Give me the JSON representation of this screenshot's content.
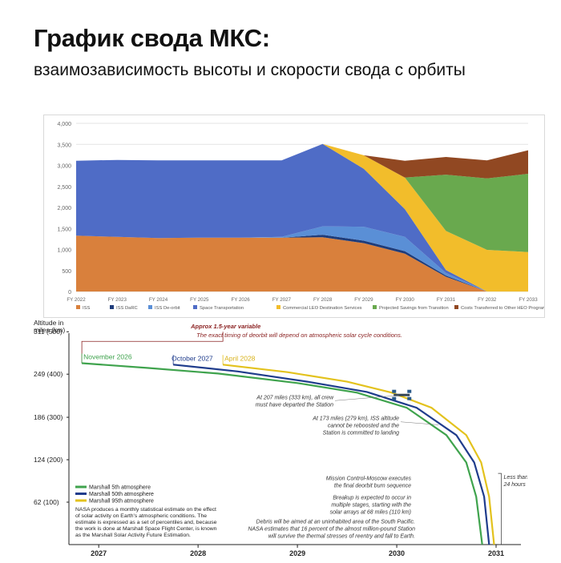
{
  "header": {
    "title": "График свода МКС:",
    "subtitle": "взаимозависимость высоты и скорости свода с орбиты"
  },
  "chart_data": [
    {
      "type": "area",
      "stacked": true,
      "categories": [
        "FY 2022",
        "FY 2023",
        "FY 2024",
        "FY 2025",
        "FY 2026",
        "FY 2027",
        "FY 2028",
        "FY 2029",
        "FY 2030",
        "FY 2031",
        "FY 2032",
        "FY 2033"
      ],
      "ylim": [
        0,
        4000
      ],
      "yticks": [
        "0",
        "500",
        "1,000",
        "1,500",
        "2,000",
        "2,500",
        "3,000",
        "3,500",
        "4,000"
      ],
      "yticks_values": [
        0,
        500,
        1000,
        1500,
        2000,
        2500,
        3000,
        3500,
        4000
      ],
      "grid": true,
      "legend_position": "bottom",
      "series": [
        {
          "name": "ISS",
          "color": "#d9803c",
          "values": [
            1330,
            1300,
            1270,
            1280,
            1280,
            1280,
            1290,
            1150,
            900,
            350,
            0,
            0
          ]
        },
        {
          "name": "ISS DaRC",
          "color": "#1f3c7a",
          "values": [
            0,
            0,
            0,
            0,
            0,
            0,
            60,
            60,
            60,
            30,
            0,
            0
          ]
        },
        {
          "name": "ISS De-orbit",
          "color": "#5a8fd6",
          "values": [
            0,
            0,
            0,
            0,
            0,
            20,
            200,
            330,
            340,
            60,
            0,
            0
          ]
        },
        {
          "name": "Space Transportation",
          "color": "#4f6cc6",
          "values": [
            1780,
            1830,
            1850,
            1840,
            1840,
            1820,
            1960,
            1380,
            660,
            70,
            0,
            0
          ]
        },
        {
          "name": "Commercial LEO Destination Services",
          "color": "#f2bd2b",
          "values": [
            0,
            0,
            0,
            0,
            0,
            0,
            0,
            320,
            750,
            930,
            990,
            940
          ]
        },
        {
          "name": "Projected Savings from Transition",
          "color": "#69a94e",
          "values": [
            0,
            0,
            0,
            0,
            0,
            0,
            0,
            0,
            0,
            1340,
            1700,
            1860
          ]
        },
        {
          "name": "Costs Transferred to Other HEO Programs",
          "color": "#914822",
          "values": [
            0,
            0,
            0,
            0,
            0,
            0,
            0,
            0,
            400,
            420,
            430,
            560
          ]
        }
      ]
    },
    {
      "type": "line",
      "ylabel": "Altitude in miles (km)",
      "yticks": [
        "311 (500)",
        "249 (400)",
        "186 (300)",
        "124 (200)",
        "62 (100)"
      ],
      "yticks_values": [
        311,
        249,
        186,
        124,
        62
      ],
      "xticks": [
        "2027",
        "2028",
        "2029",
        "2030",
        "2031"
      ],
      "xticks_values": [
        2027,
        2028,
        2029,
        2030,
        2031
      ],
      "xlim": [
        2026.7,
        2031.25
      ],
      "ylim": [
        0,
        330
      ],
      "series": [
        {
          "name": "Marshall 5th atmosphere",
          "color": "#3fa34d",
          "start_label": "November 2026",
          "points": [
            [
              2026.83,
              265
            ],
            [
              2027.5,
              258
            ],
            [
              2028.2,
              250
            ],
            [
              2029,
              236
            ],
            [
              2029.6,
              222
            ],
            [
              2030.1,
              200
            ],
            [
              2030.5,
              160
            ],
            [
              2030.7,
              120
            ],
            [
              2030.8,
              70
            ],
            [
              2030.86,
              0
            ]
          ]
        },
        {
          "name": "Marshall 50th atmosphere",
          "color": "#1f3c8c",
          "start_label": "October 2027",
          "points": [
            [
              2027.75,
              263
            ],
            [
              2028.4,
              253
            ],
            [
              2029.1,
              238
            ],
            [
              2029.7,
              223
            ],
            [
              2030.2,
              200
            ],
            [
              2030.6,
              160
            ],
            [
              2030.78,
              120
            ],
            [
              2030.88,
              70
            ],
            [
              2030.93,
              0
            ]
          ]
        },
        {
          "name": "Marshall 95th atmosphere",
          "color": "#e3c21d",
          "start_label": "April 2028",
          "points": [
            [
              2028.25,
              263
            ],
            [
              2028.9,
              252
            ],
            [
              2029.5,
              238
            ],
            [
              2029.95,
              222
            ],
            [
              2030.35,
              200
            ],
            [
              2030.7,
              160
            ],
            [
              2030.85,
              120
            ],
            [
              2030.93,
              70
            ],
            [
              2030.98,
              0
            ]
          ]
        }
      ],
      "annotations": {
        "variable_title": "Approx 1.5-year variable",
        "variable_note": "The exact timing of deorbit will depend on atmospheric solar cycle conditions.",
        "crew_note": [
          "At 207 miles (333 km), all crew",
          "must have departed the Station"
        ],
        "reboost_note": [
          "At 173 miles (279 km), ISS altitude",
          "cannot be reboosted and the",
          "Station is committed to landing"
        ],
        "burn_note": [
          "Mission Control-Moscow executes",
          "the final deorbit burn sequence"
        ],
        "breakup_note": [
          "Breakup is expected to occur in",
          "multiple stages, starting with the",
          "solar arrays at 68 miles (110 km)"
        ],
        "debris_note": [
          "Debris will be aimed at an uninhabited area of the South Pacific.",
          "NASA estimates that 16 percent of the almost million-pound Station",
          "will survive the thermal stresses of reentry and fall to Earth."
        ],
        "less_than": [
          "Less than",
          "24 hours"
        ],
        "legend_note": [
          "NASA produces a monthly statistical estimate on the effect",
          "of solar activity on Earth's atmospheric conditions. The",
          "estimate is expressed as a set of percentiles and, because",
          "the work is done at Marshall Space Flight Center, is known",
          "as the Marshall Solar Activity Future Estimation."
        ]
      }
    }
  ]
}
